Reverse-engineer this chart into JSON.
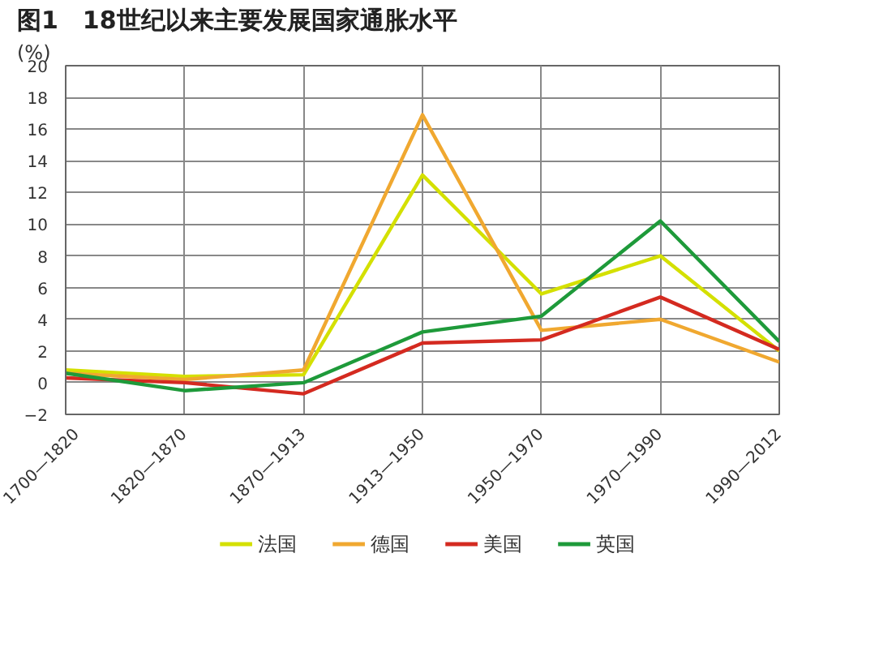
{
  "chart_data": {
    "type": "line",
    "title": "图1　18世纪以来主要发展国家通胀水平",
    "ylabel": "(%)",
    "categories": [
      "1700—1820",
      "1820—1870",
      "1870—1913",
      "1913—1950",
      "1950—1970",
      "1970—1990",
      "1990—2012"
    ],
    "series": [
      {
        "name": "法国",
        "color": "#d4e000",
        "values": [
          0.8,
          0.4,
          0.5,
          13.1,
          5.6,
          8.0,
          2.0
        ]
      },
      {
        "name": "德国",
        "color": "#f0a830",
        "values": [
          0.6,
          0.2,
          0.8,
          16.9,
          3.3,
          4.0,
          1.3
        ]
      },
      {
        "name": "美国",
        "color": "#d42a20",
        "values": [
          0.3,
          0.0,
          -0.7,
          2.5,
          2.7,
          5.4,
          2.1
        ]
      },
      {
        "name": "英国",
        "color": "#1e9a3a",
        "values": [
          0.6,
          -0.5,
          0.0,
          3.2,
          4.2,
          10.2,
          2.6
        ]
      }
    ],
    "ylim": [
      -2,
      20
    ],
    "yticks": [
      -2,
      0,
      2,
      4,
      6,
      8,
      10,
      12,
      14,
      16,
      18,
      20
    ],
    "grid": true,
    "legend": "bottom",
    "marker": "none",
    "line_style": "solid"
  }
}
